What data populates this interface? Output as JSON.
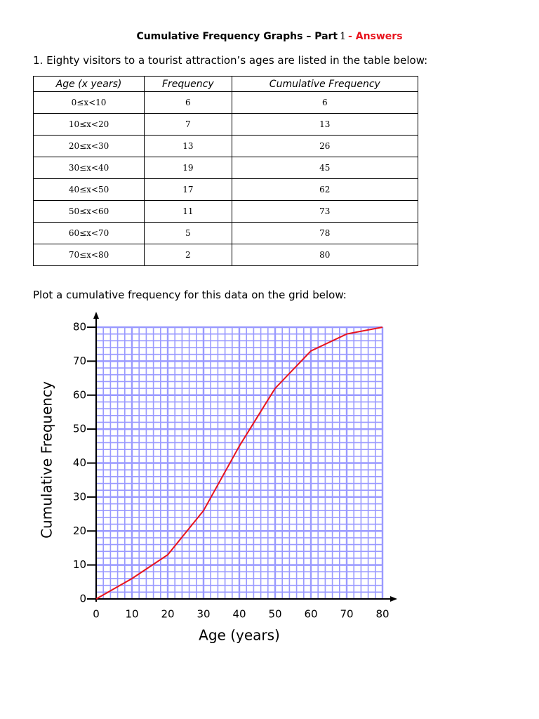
{
  "header": {
    "title": "Cumulative Frequency Graphs – Part",
    "part": "1",
    "answers": "- Answers"
  },
  "question": "1. Eighty visitors to a tourist attraction’s ages are listed in the table below:",
  "table": {
    "columns": [
      "Age (x years)",
      "Frequency",
      "Cumulative Frequency"
    ],
    "rows": [
      [
        "0≤x<10",
        6,
        6
      ],
      [
        "10≤x<20",
        7,
        13
      ],
      [
        "20≤x<30",
        13,
        26
      ],
      [
        "30≤x<40",
        19,
        45
      ],
      [
        "40≤x<50",
        17,
        62
      ],
      [
        "50≤x<60",
        11,
        73
      ],
      [
        "60≤x<70",
        5,
        78
      ],
      [
        "70≤x<80",
        2,
        80
      ]
    ]
  },
  "instruction": "Plot a cumulative frequency for this data on the grid below:",
  "chart_data": {
    "type": "line",
    "x_label": "Age (years)",
    "y_label": "Cumulative Frequency",
    "x": [
      0,
      10,
      20,
      30,
      40,
      50,
      60,
      70,
      80
    ],
    "series": [
      {
        "color": "#e8141e",
        "values": [
          0,
          6,
          13,
          26,
          45,
          62,
          73,
          78,
          80
        ]
      }
    ],
    "xlim": [
      0,
      80
    ],
    "ylim": [
      0,
      80
    ],
    "xticks": [
      0,
      10,
      20,
      30,
      40,
      50,
      60,
      70,
      80
    ],
    "yticks": [
      0,
      10,
      20,
      30,
      40,
      50,
      60,
      70,
      80
    ],
    "grid": true,
    "grid_color": "#9a9aff"
  }
}
